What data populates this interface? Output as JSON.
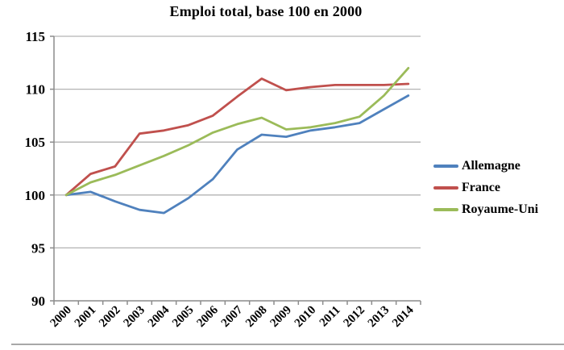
{
  "title": "Emploi total, base 100 en 2000",
  "chart_data": {
    "type": "line",
    "title": "Emploi total, base 100 en 2000",
    "xlabel": "",
    "ylabel": "",
    "categories": [
      "2000",
      "2001",
      "2002",
      "2003",
      "2004",
      "2005",
      "2006",
      "2007",
      "2008",
      "2009",
      "2010",
      "2011",
      "2012",
      "2013",
      "2014"
    ],
    "series": [
      {
        "name": "Allemagne",
        "color": "#4f81bd",
        "values": [
          100,
          100.3,
          99.4,
          98.6,
          98.3,
          99.7,
          101.5,
          104.3,
          105.7,
          105.5,
          106.1,
          106.4,
          106.8,
          108.1,
          109.4
        ]
      },
      {
        "name": "France",
        "color": "#c0504d",
        "values": [
          100,
          102.0,
          102.7,
          105.8,
          106.1,
          106.6,
          107.5,
          109.3,
          111.0,
          109.9,
          110.2,
          110.4,
          110.4,
          110.4,
          110.5
        ]
      },
      {
        "name": "Royaume-Uni",
        "color": "#9bbb59",
        "values": [
          100,
          101.2,
          101.9,
          102.8,
          103.7,
          104.7,
          105.9,
          106.7,
          107.3,
          106.2,
          106.4,
          106.8,
          107.4,
          109.4,
          112.0
        ]
      }
    ],
    "ylim": [
      90,
      115
    ],
    "ytick_step": 5,
    "ytick_labels": [
      "90",
      "95",
      "100",
      "105",
      "110",
      "115"
    ],
    "grid": true,
    "legend_position": "right"
  },
  "colors": {
    "gridline": "#b3b3b3",
    "axis": "#8c8c8c",
    "text": "#000000",
    "background": "#ffffff"
  }
}
